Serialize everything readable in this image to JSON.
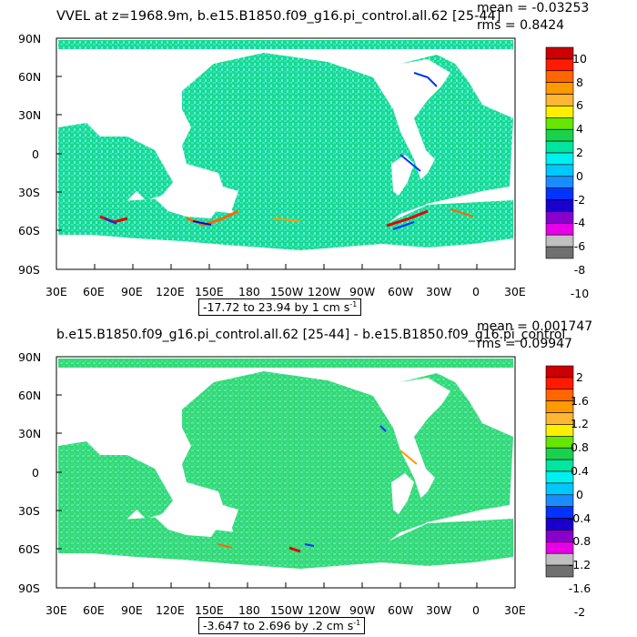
{
  "panels": [
    {
      "title": "VVEL at z=1968.9m, b.e15.B1850.f09_g16.pi_control.all.62 [25-44]",
      "mean": "mean = -0.03253",
      "rms": "rms = 0.8424",
      "range": "-17.72 to 23.94 by 1 cm s",
      "range_sup": "-1",
      "colorbar_labels": [
        "10",
        "8",
        "6",
        "4",
        "2",
        "0",
        "-2",
        "-4",
        "-6",
        "-8",
        "-10"
      ]
    },
    {
      "title": "b.e15.B1850.f09_g16.pi_control.all.62 [25-44] - b.e15.B1850.f09_g16.pi_control",
      "mean": "mean = 0.001747",
      "rms": "rms = 0.09947",
      "range": "-3.647 to 2.696 by .2 cm s",
      "range_sup": "-1",
      "colorbar_labels": [
        "2",
        "1.6",
        "1.2",
        "0.8",
        "0.4",
        "0",
        "-0.4",
        "-0.8",
        "-1.2",
        "-1.6",
        "-2"
      ]
    }
  ],
  "axes": {
    "lat_labels": [
      "90N",
      "60N",
      "30N",
      "0",
      "30S",
      "60S",
      "90S"
    ],
    "lon_labels": [
      "30E",
      "60E",
      "90E",
      "120E",
      "150E",
      "180",
      "150W",
      "120W",
      "90W",
      "60W",
      "30W",
      "0",
      "30E"
    ]
  },
  "colorbar_colors": [
    "#cc0000",
    "#ff1a00",
    "#ff6600",
    "#ff9900",
    "#ffb733",
    "#ffee00",
    "#66e600",
    "#1ad14d",
    "#00e6a0",
    "#00f0f0",
    "#00c8ff",
    "#1a8cff",
    "#0033ff",
    "#1a00cc",
    "#8800cc",
    "#e600e6",
    "#c0c0c0",
    "#707070"
  ],
  "colors": {
    "ocean_base": "#1ad98c",
    "ocean_alt": "#33e6c8",
    "land": "#ffffff"
  }
}
